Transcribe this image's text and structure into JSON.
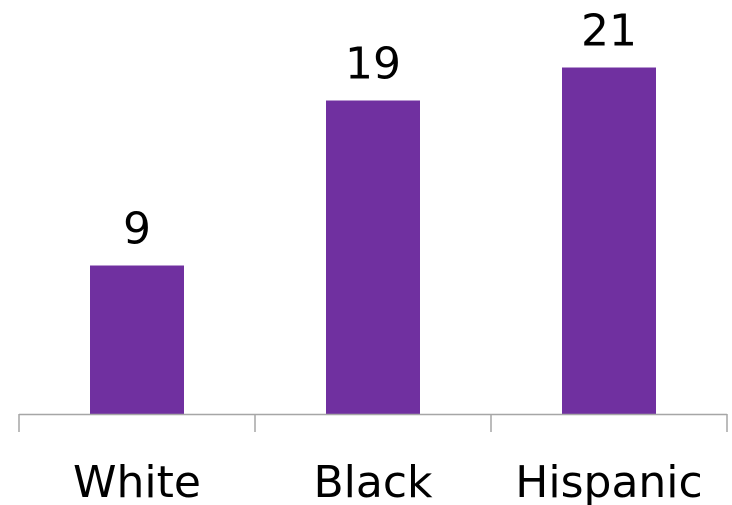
{
  "chart_data": {
    "type": "bar",
    "categories": [
      "White",
      "Black",
      "Hispanic"
    ],
    "values": [
      9,
      19,
      21
    ],
    "title": "",
    "xlabel": "",
    "ylabel": "",
    "ylim": [
      0,
      24
    ],
    "grid": false,
    "data_labels": true,
    "legend": "none",
    "colors": {
      "bar": "#7030a0",
      "axis": "#a6a6a6",
      "text": "#000000"
    }
  }
}
